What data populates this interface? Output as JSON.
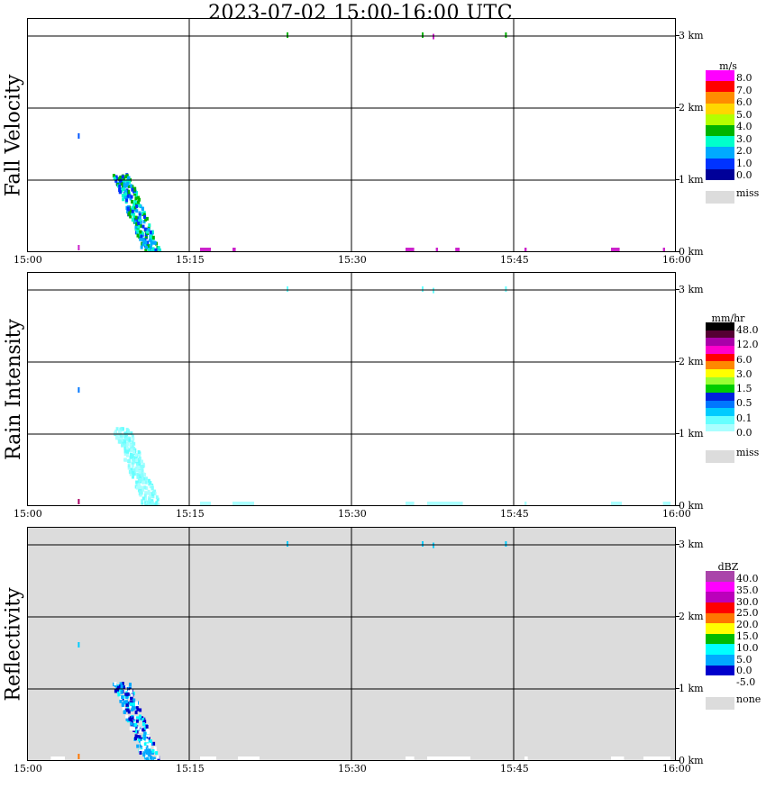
{
  "title": "2023-07-02   15:00-16:00 UTC",
  "x_ticks": [
    "15:00",
    "15:15",
    "15:30",
    "15:45",
    "16:00"
  ],
  "y_ticks": [
    "0 km",
    "1 km",
    "2 km",
    "3 km"
  ],
  "chart_data": [
    {
      "type": "heatmap",
      "title": "Fall Velocity",
      "unit": "m/s",
      "background": "#ffffff",
      "xlim": [
        "15:00",
        "16:00"
      ],
      "ylim_km": [
        0,
        3.2
      ],
      "grid": true,
      "legend_position": "right",
      "colorbar": {
        "colors": [
          "#ff00ff",
          "#ff0000",
          "#ff8c00",
          "#ffd700",
          "#b4ff00",
          "#00b400",
          "#00ffcc",
          "#00aaff",
          "#0033ff",
          "#000099"
        ],
        "labels": [
          "8.0",
          "7.0",
          "6.0",
          "5.0",
          "4.0",
          "3.0",
          "2.0",
          "1.0",
          "0.0"
        ],
        "miss_label": "miss"
      },
      "features": [
        {
          "type": "echo",
          "time_start_min": 8.3,
          "time_end_min": 12.5,
          "height_top_km": 1.1,
          "height_bottom_km": 0.0,
          "colors": [
            "#00aaff",
            "#0033ff",
            "#00ffcc",
            "#00b400"
          ]
        },
        {
          "type": "dot",
          "time_min": 4.7,
          "height_km": 1.6,
          "color": "#0055ff"
        },
        {
          "type": "dot",
          "time_min": 4.7,
          "height_km": 0.05,
          "color": "#cc22cc"
        },
        {
          "type": "surface",
          "time_start_min": 16.0,
          "time_end_min": 17.0,
          "color": "#cc22cc"
        },
        {
          "type": "surface",
          "time_start_min": 19.0,
          "time_end_min": 19.3,
          "color": "#cc22cc"
        },
        {
          "type": "surface",
          "time_start_min": 35.0,
          "time_end_min": 35.8,
          "color": "#cc22cc"
        },
        {
          "type": "surface",
          "time_start_min": 37.8,
          "time_end_min": 38.0,
          "color": "#cc22cc"
        },
        {
          "type": "surface",
          "time_start_min": 39.6,
          "time_end_min": 40.0,
          "color": "#cc22cc"
        },
        {
          "type": "surface",
          "time_start_min": 46.0,
          "time_end_min": 46.2,
          "color": "#cc22cc"
        },
        {
          "type": "surface",
          "time_start_min": 54.0,
          "time_end_min": 54.8,
          "color": "#cc22cc"
        },
        {
          "type": "surface",
          "time_start_min": 58.8,
          "time_end_min": 59.0,
          "color": "#cc22cc"
        },
        {
          "type": "dot",
          "time_min": 24.0,
          "height_km": 3.0,
          "color": "#00b400"
        },
        {
          "type": "dot",
          "time_min": 36.5,
          "height_km": 3.0,
          "color": "#00b400"
        },
        {
          "type": "dot",
          "time_min": 37.5,
          "height_km": 2.98,
          "color": "#cc22cc"
        },
        {
          "type": "dot",
          "time_min": 44.2,
          "height_km": 3.0,
          "color": "#00b400"
        }
      ]
    },
    {
      "type": "heatmap",
      "title": "Rain Intensity",
      "unit": "mm/hr",
      "background": "#ffffff",
      "xlim": [
        "15:00",
        "16:00"
      ],
      "ylim_km": [
        0,
        3.2
      ],
      "grid": true,
      "legend_position": "right",
      "colorbar": {
        "colors": [
          "#000000",
          "#550033",
          "#aa00aa",
          "#ff00cc",
          "#ff0000",
          "#ff8800",
          "#ffff00",
          "#99ff33",
          "#00cc00",
          "#0022dd",
          "#0077ff",
          "#00ccff",
          "#66ffff",
          "#aaffff",
          "#ffffff"
        ],
        "labels": [
          "48.0",
          "12.0",
          "6.0",
          "3.0",
          "1.5",
          "0.5",
          "0.1",
          "0.0"
        ],
        "miss_label": "miss"
      },
      "features": [
        {
          "type": "echo",
          "time_start_min": 8.3,
          "time_end_min": 12.5,
          "height_top_km": 1.1,
          "height_bottom_km": 0.0,
          "colors": [
            "#88ffff",
            "#66ffff",
            "#aaffff"
          ]
        },
        {
          "type": "dot",
          "time_min": 4.7,
          "height_km": 1.6,
          "color": "#0077ff"
        },
        {
          "type": "dot",
          "time_min": 4.7,
          "height_km": 0.05,
          "color": "#aa0066"
        },
        {
          "type": "surface",
          "time_start_min": 16.0,
          "time_end_min": 17.0,
          "color": "#aaffff"
        },
        {
          "type": "surface",
          "time_start_min": 19.0,
          "time_end_min": 21.0,
          "color": "#aaffff"
        },
        {
          "type": "surface",
          "time_start_min": 35.0,
          "time_end_min": 35.8,
          "color": "#aaffff"
        },
        {
          "type": "surface",
          "time_start_min": 37.0,
          "time_end_min": 40.3,
          "color": "#aaffff"
        },
        {
          "type": "surface",
          "time_start_min": 46.0,
          "time_end_min": 46.2,
          "color": "#aaffff"
        },
        {
          "type": "surface",
          "time_start_min": 54.0,
          "time_end_min": 55.0,
          "color": "#aaffff"
        },
        {
          "type": "surface",
          "time_start_min": 58.8,
          "time_end_min": 59.5,
          "color": "#aaffff"
        },
        {
          "type": "dot",
          "time_min": 24.0,
          "height_km": 3.0,
          "color": "#66ffff"
        },
        {
          "type": "dot",
          "time_min": 36.5,
          "height_km": 3.0,
          "color": "#66ffff"
        },
        {
          "type": "dot",
          "time_min": 37.5,
          "height_km": 2.98,
          "color": "#66ffff"
        },
        {
          "type": "dot",
          "time_min": 44.2,
          "height_km": 3.0,
          "color": "#66ffff"
        }
      ]
    },
    {
      "type": "heatmap",
      "title": "Reflectivity",
      "unit": "dBZ",
      "background": "#dcdcdc",
      "xlim": [
        "15:00",
        "16:00"
      ],
      "ylim_km": [
        0,
        3.2
      ],
      "grid": true,
      "legend_position": "right",
      "colorbar": {
        "colors": [
          "#aa44aa",
          "#ff00ff",
          "#bb00bb",
          "#ff0000",
          "#ff7700",
          "#ffff00",
          "#00bb00",
          "#00ffff",
          "#00aaff",
          "#0000cc",
          "#ffffff"
        ],
        "labels": [
          "40.0",
          "35.0",
          "30.0",
          "25.0",
          "20.0",
          "15.0",
          "10.0",
          "5.0",
          "0.0",
          "-5.0"
        ],
        "miss_label": "none"
      },
      "features": [
        {
          "type": "echo",
          "time_start_min": 8.3,
          "time_end_min": 12.5,
          "height_top_km": 1.1,
          "height_bottom_km": 0.0,
          "colors": [
            "#0000cc",
            "#00aaff",
            "#00ffff",
            "#ffffff"
          ]
        },
        {
          "type": "dot",
          "time_min": 4.7,
          "height_km": 1.6,
          "color": "#00ccff"
        },
        {
          "type": "dot",
          "time_min": 4.7,
          "height_km": 0.05,
          "color": "#ff7700"
        },
        {
          "type": "surface",
          "time_start_min": 2.2,
          "time_end_min": 3.5,
          "color": "#ffffff"
        },
        {
          "type": "surface",
          "time_start_min": 16.0,
          "time_end_min": 17.5,
          "color": "#ffffff"
        },
        {
          "type": "surface",
          "time_start_min": 19.5,
          "time_end_min": 21.5,
          "color": "#ffffff"
        },
        {
          "type": "surface",
          "time_start_min": 35.0,
          "time_end_min": 35.8,
          "color": "#ffffff"
        },
        {
          "type": "surface",
          "time_start_min": 37.0,
          "time_end_min": 41.0,
          "color": "#ffffff"
        },
        {
          "type": "surface",
          "time_start_min": 46.0,
          "time_end_min": 46.3,
          "color": "#ffffff"
        },
        {
          "type": "surface",
          "time_start_min": 54.0,
          "time_end_min": 55.2,
          "color": "#ffffff"
        },
        {
          "type": "surface",
          "time_start_min": 57.0,
          "time_end_min": 59.5,
          "color": "#ffffff"
        },
        {
          "type": "dot",
          "time_min": 24.0,
          "height_km": 3.0,
          "color": "#00ccff"
        },
        {
          "type": "dot",
          "time_min": 36.5,
          "height_km": 3.0,
          "color": "#00ccff"
        },
        {
          "type": "dot",
          "time_min": 37.5,
          "height_km": 2.98,
          "color": "#00ccff"
        },
        {
          "type": "dot",
          "time_min": 44.2,
          "height_km": 3.0,
          "color": "#00ccff"
        }
      ]
    }
  ]
}
